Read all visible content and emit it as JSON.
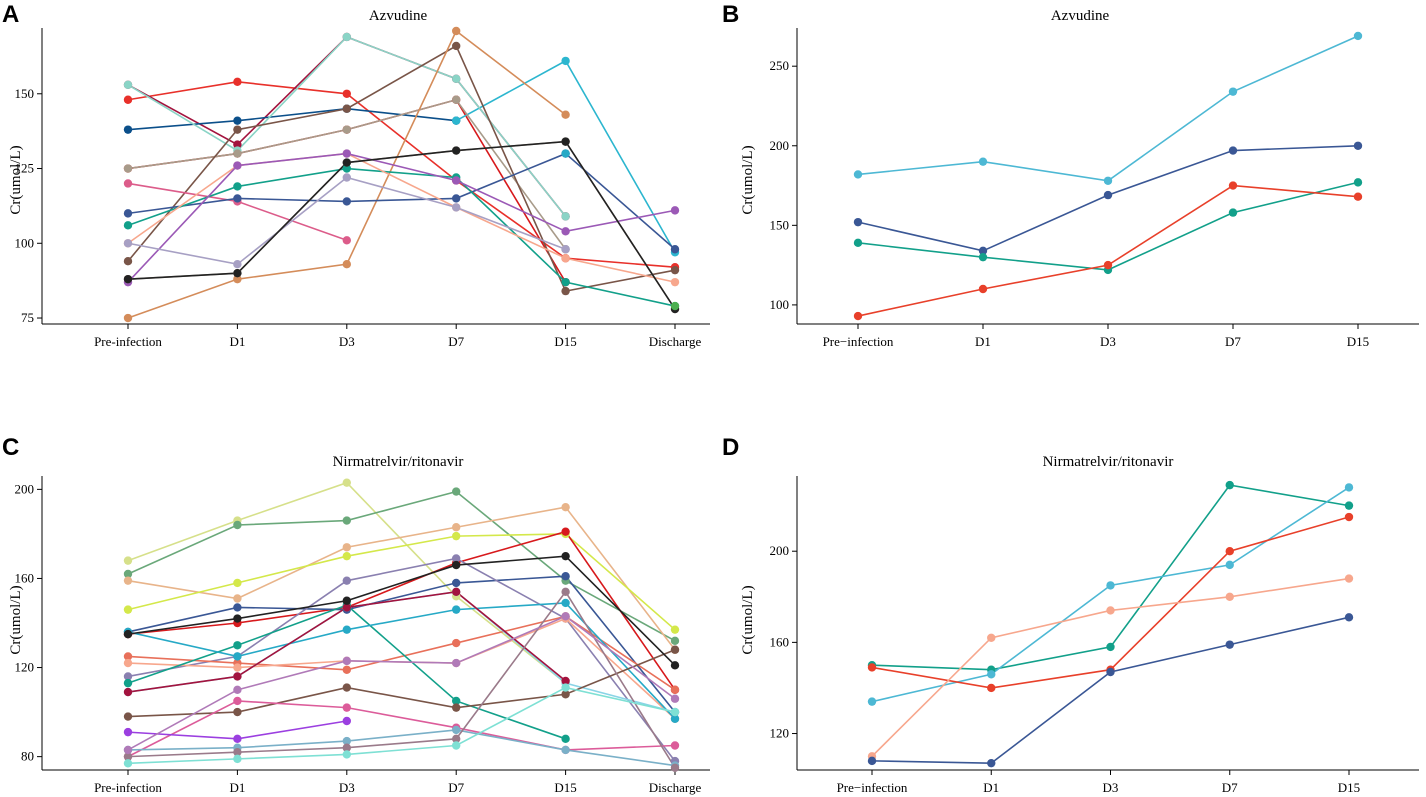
{
  "chart_data": [
    {
      "panel": "A",
      "type": "line",
      "title": "Azvudine",
      "xlabel": "",
      "ylabel": "Cr(umol/L)",
      "categories": [
        "Pre-infection",
        "D1",
        "D3",
        "D7",
        "D15",
        "Discharge"
      ],
      "ylim": [
        73,
        172
      ],
      "yticks": [
        75,
        100,
        125,
        150
      ],
      "series": [
        {
          "name": "s1",
          "color": "#e8302a",
          "values": [
            148,
            154,
            150,
            121,
            95,
            92
          ]
        },
        {
          "name": "s2",
          "color": "#a3133e",
          "values": [
            153,
            133,
            169,
            155,
            109,
            null
          ]
        },
        {
          "name": "s3",
          "color": "#d7191c",
          "values": [
            125,
            130,
            138,
            148,
            87,
            null
          ]
        },
        {
          "name": "s4",
          "color": "#0b4f8a",
          "values": [
            138,
            141,
            145,
            141,
            null,
            null
          ]
        },
        {
          "name": "s5",
          "color": "#2cb6cf",
          "values": [
            null,
            null,
            null,
            141,
            161,
            97
          ]
        },
        {
          "name": "s6",
          "color": "#8ad4c6",
          "values": [
            153,
            131,
            169,
            155,
            109,
            null
          ]
        },
        {
          "name": "s7",
          "color": "#a89b8a",
          "values": [
            125,
            130,
            138,
            148,
            98,
            null
          ]
        },
        {
          "name": "s8",
          "color": "#795548",
          "values": [
            94,
            138,
            145,
            166,
            84,
            91
          ]
        },
        {
          "name": "s9",
          "color": "#d48c5a",
          "values": [
            75,
            88,
            93,
            171,
            143,
            null
          ]
        },
        {
          "name": "s10",
          "color": "#dc5c8a",
          "values": [
            120,
            114,
            101,
            null,
            null,
            null
          ]
        },
        {
          "name": "s11",
          "color": "#3a5795",
          "values": [
            110,
            115,
            114,
            115,
            130,
            98
          ]
        },
        {
          "name": "s12",
          "color": "#12a08a",
          "values": [
            106,
            119,
            125,
            122,
            87,
            79
          ]
        },
        {
          "name": "s13",
          "color": "#f7a78d",
          "values": [
            100,
            126,
            130,
            112,
            95,
            87
          ]
        },
        {
          "name": "s14",
          "color": "#9b59b6",
          "values": [
            87,
            126,
            130,
            121,
            104,
            111
          ]
        },
        {
          "name": "s15",
          "color": "#a7a0c4",
          "values": [
            100,
            93,
            122,
            112,
            98,
            null
          ]
        },
        {
          "name": "s16",
          "color": "#b0a090",
          "values": [
            88,
            90,
            127,
            131,
            134,
            78
          ]
        },
        {
          "name": "s17",
          "color": "#222222",
          "values": [
            88,
            90,
            127,
            131,
            134,
            78
          ]
        },
        {
          "name": "s18",
          "color": "#4caf50",
          "values": [
            null,
            null,
            null,
            null,
            null,
            79
          ]
        },
        {
          "name": "s19",
          "color": "#26a9c6",
          "values": [
            null,
            null,
            null,
            null,
            130,
            null
          ]
        }
      ]
    },
    {
      "panel": "B",
      "type": "line",
      "title": "Azvudine",
      "xlabel": "",
      "ylabel": "Cr(umol/L)",
      "categories": [
        "Pre−infection",
        "D1",
        "D3",
        "D7",
        "D15"
      ],
      "ylim": [
        88,
        274
      ],
      "yticks": [
        100,
        150,
        200,
        250
      ],
      "series": [
        {
          "name": "s1",
          "color": "#4db8d4",
          "values": [
            182,
            190,
            178,
            234,
            269
          ]
        },
        {
          "name": "s2",
          "color": "#3a5795",
          "values": [
            152,
            134,
            169,
            197,
            200
          ]
        },
        {
          "name": "s3",
          "color": "#12a08a",
          "values": [
            139,
            130,
            122,
            158,
            177
          ]
        },
        {
          "name": "s4",
          "color": "#e8402a",
          "values": [
            93,
            110,
            125,
            175,
            168
          ]
        }
      ]
    },
    {
      "panel": "C",
      "type": "line",
      "title": "Nirmatrelvir/ritonavir",
      "xlabel": "",
      "ylabel": "Cr(umol/L)",
      "categories": [
        "Pre-infection",
        "D1",
        "D3",
        "D7",
        "D15",
        "Discharge"
      ],
      "ylim": [
        74,
        206
      ],
      "yticks": [
        80,
        120,
        160,
        200
      ],
      "series": [
        {
          "name": "s1",
          "color": "#d6e08a",
          "values": [
            168,
            186,
            203,
            152,
            113,
            null
          ]
        },
        {
          "name": "s2",
          "color": "#6aa87a",
          "values": [
            162,
            184,
            186,
            199,
            159,
            132
          ]
        },
        {
          "name": "s3",
          "color": "#e8b48a",
          "values": [
            159,
            151,
            174,
            183,
            192,
            128
          ]
        },
        {
          "name": "s4",
          "color": "#d4e84a",
          "values": [
            146,
            158,
            170,
            179,
            180,
            137
          ]
        },
        {
          "name": "s5",
          "color": "#d7191c",
          "values": [
            135,
            140,
            147,
            167,
            181,
            110
          ]
        },
        {
          "name": "s6",
          "color": "#3a5795",
          "values": [
            136,
            147,
            146,
            158,
            161,
            100
          ]
        },
        {
          "name": "s7",
          "color": "#8a80b0",
          "values": [
            116,
            125,
            159,
            169,
            142,
            78
          ]
        },
        {
          "name": "s8",
          "color": "#e8705a",
          "values": [
            125,
            122,
            119,
            131,
            143,
            110
          ]
        },
        {
          "name": "s9",
          "color": "#f7a78d",
          "values": [
            122,
            120,
            123,
            122,
            142,
            97
          ]
        },
        {
          "name": "s10",
          "color": "#12a08a",
          "values": [
            113,
            130,
            148,
            105,
            88,
            null
          ]
        },
        {
          "name": "s11",
          "color": "#26a9c6",
          "values": [
            136,
            125,
            137,
            146,
            149,
            97
          ]
        },
        {
          "name": "s12",
          "color": "#8ad4e6",
          "values": [
            109,
            116,
            147,
            154,
            113,
            100
          ]
        },
        {
          "name": "s13",
          "color": "#a3133e",
          "values": [
            109,
            116,
            147,
            154,
            114,
            null
          ]
        },
        {
          "name": "s14",
          "color": "#795548",
          "values": [
            98,
            100,
            111,
            102,
            108,
            128
          ]
        },
        {
          "name": "s15",
          "color": "#dc5c9a",
          "values": [
            80,
            105,
            102,
            93,
            83,
            85
          ]
        },
        {
          "name": "s16",
          "color": "#9b3fe0",
          "values": [
            91,
            88,
            96,
            null,
            null,
            null
          ]
        },
        {
          "name": "s17",
          "color": "#7ab0c8",
          "values": [
            83,
            84,
            87,
            92,
            83,
            76
          ]
        },
        {
          "name": "s18",
          "color": "#9a7a8a",
          "values": [
            80,
            82,
            84,
            88,
            154,
            75
          ]
        },
        {
          "name": "s19",
          "color": "#7ee0d4",
          "values": [
            77,
            79,
            81,
            85,
            111,
            100
          ]
        },
        {
          "name": "s20",
          "color": "#b07ab8",
          "values": [
            83,
            110,
            123,
            122,
            143,
            106
          ]
        },
        {
          "name": "s21",
          "color": "#222222",
          "values": [
            135,
            142,
            150,
            166,
            170,
            121
          ]
        }
      ]
    },
    {
      "panel": "D",
      "type": "line",
      "title": "Nirmatrelvir/ritonavir",
      "xlabel": "",
      "ylabel": "Cr(umol/L)",
      "categories": [
        "Pre−infection",
        "D1",
        "D3",
        "D7",
        "D15"
      ],
      "ylim": [
        104,
        233
      ],
      "yticks": [
        120,
        160,
        200
      ],
      "series": [
        {
          "name": "s1",
          "color": "#12a08a",
          "values": [
            150,
            148,
            158,
            229,
            220
          ]
        },
        {
          "name": "s2",
          "color": "#4db8d4",
          "values": [
            134,
            146,
            185,
            194,
            228
          ]
        },
        {
          "name": "s3",
          "color": "#e8402a",
          "values": [
            149,
            140,
            148,
            200,
            215
          ]
        },
        {
          "name": "s4",
          "color": "#f7a78d",
          "values": [
            110,
            162,
            174,
            180,
            188
          ]
        },
        {
          "name": "s5",
          "color": "#3a5795",
          "values": [
            108,
            107,
            147,
            159,
            171
          ]
        }
      ]
    }
  ]
}
